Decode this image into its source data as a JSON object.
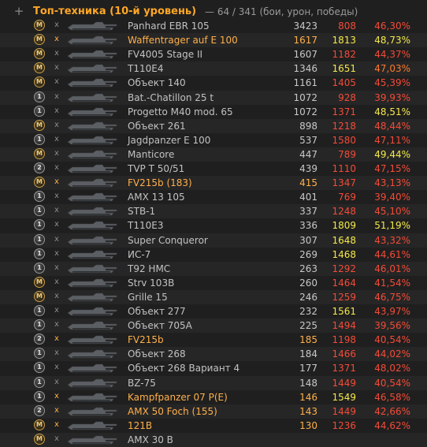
{
  "header": {
    "title": "Топ-техника (10-й уровень)",
    "subtitle": "— 64 / 341 (бои, урон, победы)",
    "expand_icon": "plus-icon"
  },
  "colors": {
    "title": "#ffa726",
    "highlight": "#ffb04a",
    "red": "#f44b37",
    "orange": "#ff7a2e",
    "yellow": "#f4e94a",
    "green": "#b6e349"
  },
  "rows": [
    {
      "mastery": "M",
      "name": "Panhard EBR 105",
      "battles": "3423",
      "damage": "808",
      "dmg_color": "red",
      "winrate": "46,30%",
      "wr_color": "red",
      "hi": false
    },
    {
      "mastery": "M",
      "name": "Waffentrager auf E 100",
      "battles": "1617",
      "damage": "1813",
      "dmg_color": "yellow",
      "winrate": "48,73%",
      "wr_color": "yellow",
      "hi": true
    },
    {
      "mastery": "M",
      "name": "FV4005 Stage II",
      "battles": "1607",
      "damage": "1182",
      "dmg_color": "red",
      "winrate": "44,37%",
      "wr_color": "red",
      "hi": false
    },
    {
      "mastery": "M",
      "name": "T110E4",
      "battles": "1346",
      "damage": "1651",
      "dmg_color": "yellow",
      "winrate": "47,03%",
      "wr_color": "orange",
      "hi": false
    },
    {
      "mastery": "M",
      "name": "Объект 140",
      "battles": "1161",
      "damage": "1405",
      "dmg_color": "red",
      "winrate": "45,39%",
      "wr_color": "red",
      "hi": false
    },
    {
      "mastery": "1",
      "name": "Bat.-Chatillon 25 t",
      "battles": "1072",
      "damage": "928",
      "dmg_color": "red",
      "winrate": "39,93%",
      "wr_color": "red",
      "hi": false
    },
    {
      "mastery": "1",
      "name": "Progetto M40 mod. 65",
      "battles": "1072",
      "damage": "1371",
      "dmg_color": "red",
      "winrate": "48,51%",
      "wr_color": "yellow",
      "hi": false
    },
    {
      "mastery": "M",
      "name": "Объект 261",
      "battles": "898",
      "damage": "1218",
      "dmg_color": "red",
      "winrate": "48,44%",
      "wr_color": "red",
      "hi": false
    },
    {
      "mastery": "1",
      "name": "Jagdpanzer E 100",
      "battles": "537",
      "damage": "1580",
      "dmg_color": "red",
      "winrate": "47,11%",
      "wr_color": "red",
      "hi": false
    },
    {
      "mastery": "M",
      "name": "Manticore",
      "battles": "447",
      "damage": "789",
      "dmg_color": "red",
      "winrate": "49,44%",
      "wr_color": "yellow",
      "hi": false
    },
    {
      "mastery": "2",
      "name": "TVP T 50/51",
      "battles": "439",
      "damage": "1110",
      "dmg_color": "red",
      "winrate": "47,15%",
      "wr_color": "red",
      "hi": false
    },
    {
      "mastery": "M",
      "name": "FV215b (183)",
      "battles": "415",
      "damage": "1347",
      "dmg_color": "red",
      "winrate": "43,13%",
      "wr_color": "red",
      "hi": true
    },
    {
      "mastery": "1",
      "name": "AMX 13 105",
      "battles": "401",
      "damage": "769",
      "dmg_color": "red",
      "winrate": "39,40%",
      "wr_color": "red",
      "hi": false
    },
    {
      "mastery": "1",
      "name": "STB-1",
      "battles": "337",
      "damage": "1248",
      "dmg_color": "red",
      "winrate": "45,10%",
      "wr_color": "red",
      "hi": false
    },
    {
      "mastery": "1",
      "name": "T110E3",
      "battles": "336",
      "damage": "1809",
      "dmg_color": "yellow",
      "winrate": "51,19%",
      "wr_color": "yellow",
      "hi": false
    },
    {
      "mastery": "1",
      "name": "Super Conqueror",
      "battles": "307",
      "damage": "1648",
      "dmg_color": "yellow",
      "winrate": "43,32%",
      "wr_color": "red",
      "hi": false
    },
    {
      "mastery": "1",
      "name": "ИС-7",
      "battles": "269",
      "damage": "1468",
      "dmg_color": "yellow",
      "winrate": "44,61%",
      "wr_color": "red",
      "hi": false
    },
    {
      "mastery": "1",
      "name": "T92 HMC",
      "battles": "263",
      "damage": "1292",
      "dmg_color": "red",
      "winrate": "46,01%",
      "wr_color": "red",
      "hi": false
    },
    {
      "mastery": "M",
      "name": "Strv 103B",
      "battles": "260",
      "damage": "1464",
      "dmg_color": "red",
      "winrate": "41,54%",
      "wr_color": "red",
      "hi": false
    },
    {
      "mastery": "M",
      "name": "Grille 15",
      "battles": "246",
      "damage": "1259",
      "dmg_color": "red",
      "winrate": "46,75%",
      "wr_color": "red",
      "hi": false
    },
    {
      "mastery": "1",
      "name": "Объект 277",
      "battles": "232",
      "damage": "1561",
      "dmg_color": "yellow",
      "winrate": "43,97%",
      "wr_color": "red",
      "hi": false
    },
    {
      "mastery": "1",
      "name": "Объект 705А",
      "battles": "225",
      "damage": "1494",
      "dmg_color": "red",
      "winrate": "39,56%",
      "wr_color": "red",
      "hi": false
    },
    {
      "mastery": "2",
      "name": "FV215b",
      "battles": "185",
      "damage": "1198",
      "dmg_color": "red",
      "winrate": "40,54%",
      "wr_color": "red",
      "hi": true
    },
    {
      "mastery": "1",
      "name": "Объект 268",
      "battles": "184",
      "damage": "1466",
      "dmg_color": "red",
      "winrate": "44,02%",
      "wr_color": "red",
      "hi": false
    },
    {
      "mastery": "1",
      "name": "Объект 268 Вариант 4",
      "battles": "177",
      "damage": "1371",
      "dmg_color": "red",
      "winrate": "48,02%",
      "wr_color": "red",
      "hi": false
    },
    {
      "mastery": "1",
      "name": "BZ-75",
      "battles": "148",
      "damage": "1449",
      "dmg_color": "red",
      "winrate": "40,54%",
      "wr_color": "red",
      "hi": false
    },
    {
      "mastery": "1",
      "name": "Kampfpanzer 07 P(E)",
      "battles": "146",
      "damage": "1549",
      "dmg_color": "yellow",
      "winrate": "46,58%",
      "wr_color": "red",
      "hi": true
    },
    {
      "mastery": "2",
      "name": "AMX 50 Foch (155)",
      "battles": "143",
      "damage": "1449",
      "dmg_color": "red",
      "winrate": "42,66%",
      "wr_color": "red",
      "hi": true
    },
    {
      "mastery": "M",
      "name": "121B",
      "battles": "130",
      "damage": "1236",
      "dmg_color": "red",
      "winrate": "44,62%",
      "wr_color": "red",
      "hi": true
    },
    {
      "mastery": "M",
      "name": "AMX 30 B",
      "battles": "",
      "damage": "",
      "dmg_color": "red",
      "winrate": "",
      "wr_color": "yellow",
      "hi": false
    }
  ]
}
